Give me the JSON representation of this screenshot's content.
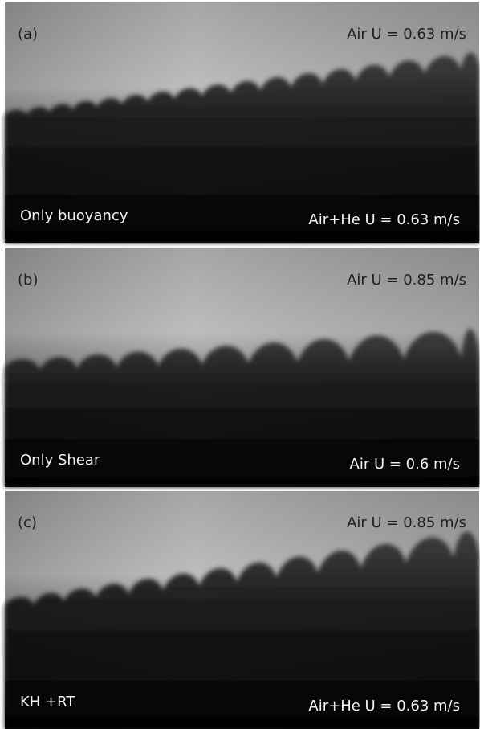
{
  "panels": [
    {
      "label": "(a)",
      "top_right": "Air U = 0.63 m/s",
      "bottom_left": "Only buoyancy",
      "bottom_right": "Air+He U = 0.63 m/s"
    },
    {
      "label": "(b)",
      "top_right": "Air U = 0.85 m/s",
      "bottom_left": "Only Shear",
      "bottom_right": "Air U = 0.6 m/s"
    },
    {
      "label": "(c)",
      "top_right": "Air U = 0.85 m/s",
      "bottom_left": "KH +RT",
      "bottom_right": "Air+He U = 0.63 m/s"
    }
  ]
}
